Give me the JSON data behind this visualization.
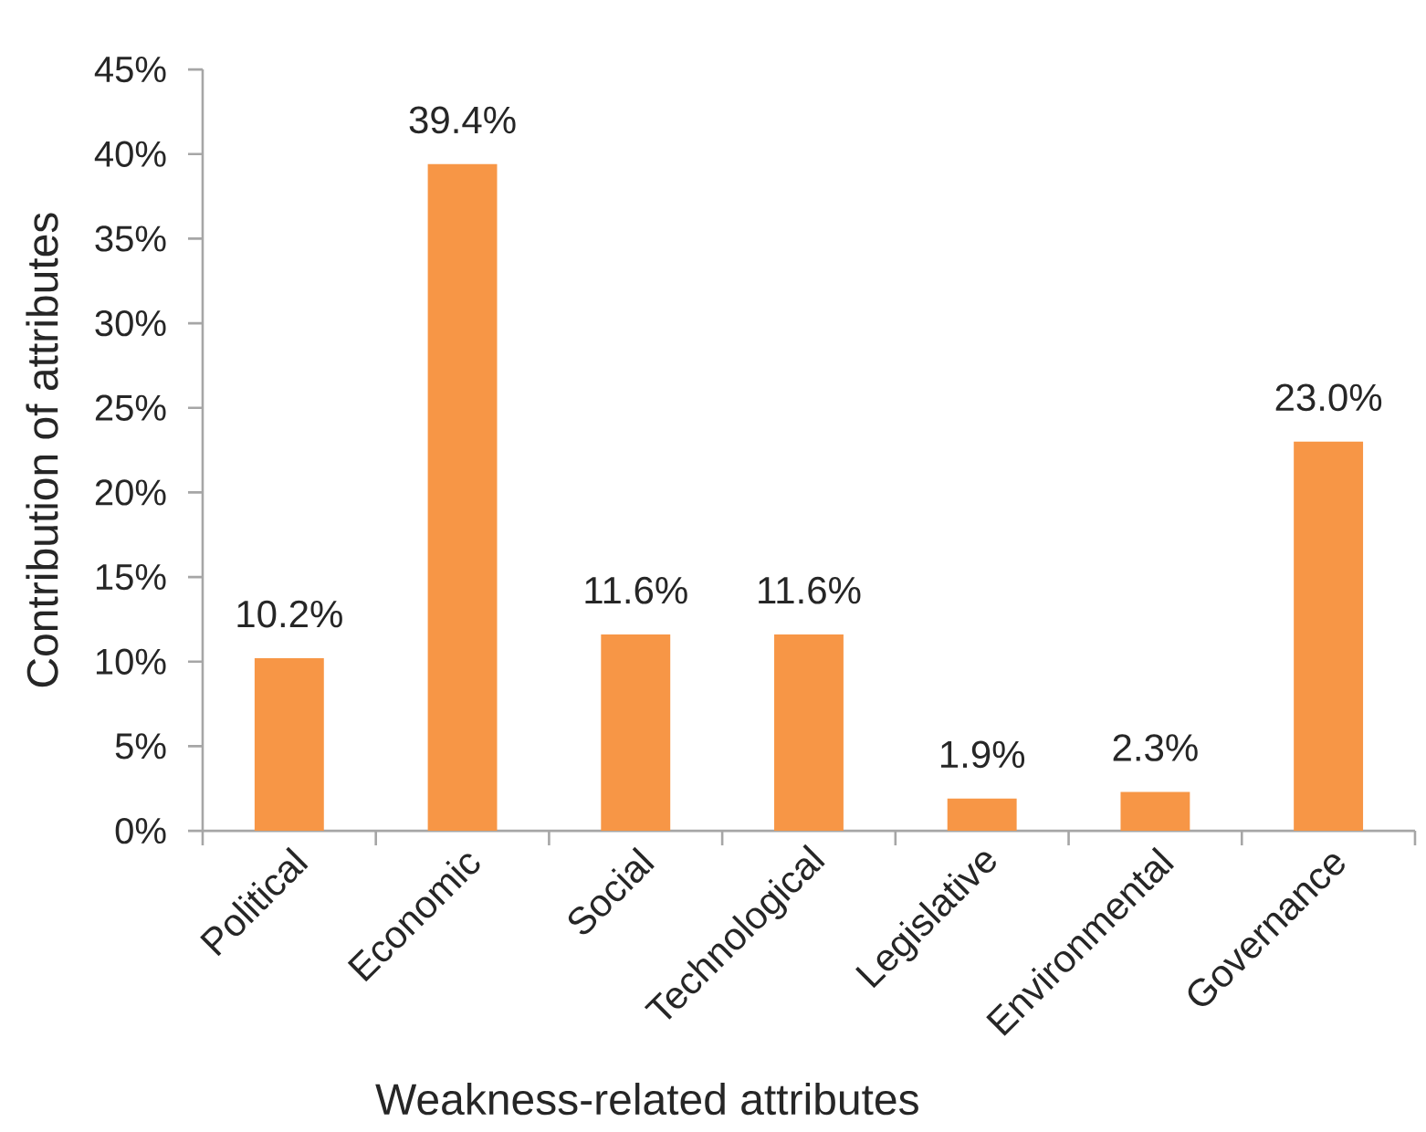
{
  "chart_data": {
    "type": "bar",
    "xlabel": "Weakness-related attributes",
    "ylabel": "Contribution of attributes",
    "categories": [
      "Political",
      "Economic",
      "Social",
      "Technological",
      "Legislative",
      "Environmental",
      "Governance"
    ],
    "values": [
      10.2,
      39.4,
      11.6,
      11.6,
      1.9,
      2.3,
      23.0
    ],
    "value_labels": [
      "10.2%",
      "39.4%",
      "11.6%",
      "11.6%",
      "1.9%",
      "2.3%",
      "23.0%"
    ],
    "color": "#f79646",
    "ylim": [
      0,
      45
    ],
    "yticks": [
      {
        "value": 0,
        "label": "0%"
      },
      {
        "value": 5,
        "label": "5%"
      },
      {
        "value": 10,
        "label": "10%"
      },
      {
        "value": 15,
        "label": "15%"
      },
      {
        "value": 20,
        "label": "20%"
      },
      {
        "value": 25,
        "label": "25%"
      },
      {
        "value": 30,
        "label": "30%"
      },
      {
        "value": 35,
        "label": "35%"
      },
      {
        "value": 40,
        "label": "40%"
      },
      {
        "value": 45,
        "label": "45%"
      }
    ]
  }
}
